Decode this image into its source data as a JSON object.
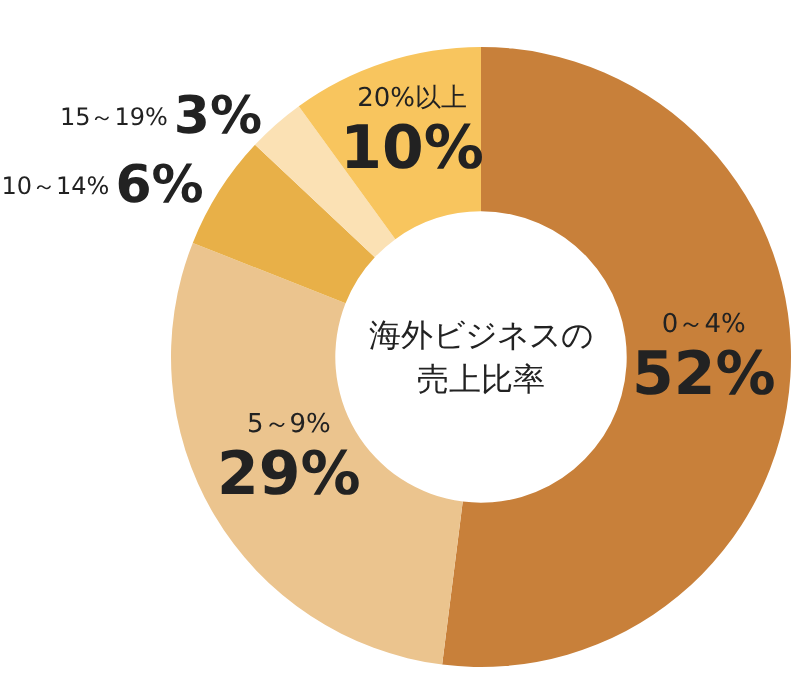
{
  "chart_data": {
    "type": "donut",
    "title": "海外ビジネスの売上比率",
    "categories": [
      "0～4%",
      "5～9%",
      "10～14%",
      "15～19%",
      "20%以上"
    ],
    "values": [
      52,
      29,
      6,
      3,
      10
    ],
    "value_labels": [
      "52%",
      "29%",
      "6%",
      "3%",
      "10%"
    ],
    "colors": [
      "#c8803a",
      "#ebc48e",
      "#e8b048",
      "#fbe1b4",
      "#f8c55e"
    ]
  }
}
